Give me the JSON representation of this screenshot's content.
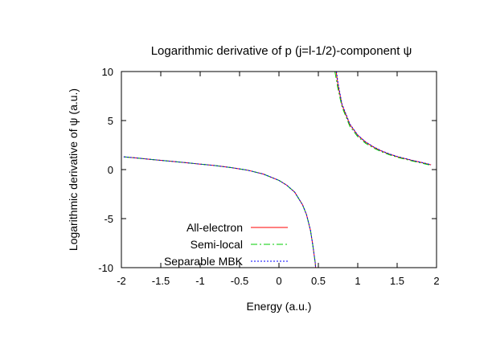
{
  "chart_data": {
    "type": "line",
    "title": "Logarithmic derivative of p (j=l-1/2)-component ψ",
    "xlabel": "Energy (a.u.)",
    "ylabel": "Logarithmic derivative of ψ (a.u.)",
    "xlim": [
      -2,
      2
    ],
    "ylim": [
      -10,
      10
    ],
    "xticks": [
      "-2",
      "-1.5",
      "-1",
      "-0.5",
      "0",
      "0.5",
      "1",
      "1.5",
      "2"
    ],
    "yticks": [
      "-10",
      "-5",
      "0",
      "5",
      "10"
    ],
    "legend_position": "bottom-left",
    "grid": false,
    "series": [
      {
        "name": "All-electron",
        "color": "#ff0000",
        "dash": "solid",
        "segments": [
          [
            [
              -1.97,
              1.3
            ],
            [
              -1.8,
              1.18
            ],
            [
              -1.6,
              1.02
            ],
            [
              -1.4,
              0.87
            ],
            [
              -1.2,
              0.72
            ],
            [
              -1.0,
              0.56
            ],
            [
              -0.8,
              0.4
            ],
            [
              -0.6,
              0.2
            ],
            [
              -0.4,
              -0.06
            ],
            [
              -0.2,
              -0.45
            ],
            [
              0.0,
              -1.1
            ],
            [
              0.1,
              -1.6
            ],
            [
              0.2,
              -2.3
            ],
            [
              0.3,
              -3.6
            ],
            [
              0.35,
              -4.6
            ],
            [
              0.4,
              -6.2
            ],
            [
              0.43,
              -7.7
            ],
            [
              0.46,
              -9.5
            ],
            [
              0.465,
              -10.0
            ]
          ],
          [
            [
              0.725,
              10.0
            ],
            [
              0.75,
              8.6
            ],
            [
              0.8,
              6.6
            ],
            [
              0.9,
              4.6
            ],
            [
              1.0,
              3.5
            ],
            [
              1.1,
              2.8
            ],
            [
              1.2,
              2.3
            ],
            [
              1.3,
              1.9
            ],
            [
              1.4,
              1.58
            ],
            [
              1.5,
              1.32
            ],
            [
              1.6,
              1.12
            ],
            [
              1.7,
              0.92
            ],
            [
              1.8,
              0.74
            ],
            [
              1.9,
              0.55
            ],
            [
              1.93,
              0.48
            ]
          ]
        ]
      },
      {
        "name": "Semi-local",
        "color": "#00cc00",
        "dash": "8,3,2,3",
        "segments": [
          [
            [
              -1.97,
              1.3
            ],
            [
              -1.8,
              1.18
            ],
            [
              -1.6,
              1.02
            ],
            [
              -1.4,
              0.87
            ],
            [
              -1.2,
              0.72
            ],
            [
              -1.0,
              0.56
            ],
            [
              -0.8,
              0.4
            ],
            [
              -0.6,
              0.2
            ],
            [
              -0.4,
              -0.06
            ],
            [
              -0.2,
              -0.45
            ],
            [
              0.0,
              -1.1
            ],
            [
              0.1,
              -1.6
            ],
            [
              0.2,
              -2.3
            ],
            [
              0.3,
              -3.6
            ],
            [
              0.35,
              -4.6
            ],
            [
              0.4,
              -6.2
            ],
            [
              0.43,
              -7.7
            ],
            [
              0.46,
              -9.5
            ],
            [
              0.465,
              -10.0
            ]
          ],
          [
            [
              0.71,
              10.0
            ],
            [
              0.75,
              8.2
            ],
            [
              0.8,
              6.4
            ],
            [
              0.9,
              4.4
            ],
            [
              1.0,
              3.35
            ],
            [
              1.1,
              2.68
            ],
            [
              1.2,
              2.2
            ],
            [
              1.3,
              1.82
            ],
            [
              1.4,
              1.52
            ],
            [
              1.5,
              1.26
            ],
            [
              1.6,
              1.06
            ],
            [
              1.7,
              0.86
            ],
            [
              1.8,
              0.68
            ],
            [
              1.9,
              0.49
            ],
            [
              1.93,
              0.42
            ]
          ]
        ]
      },
      {
        "name": "Separable MBK",
        "color": "#0000ff",
        "dash": "2,2",
        "segments": [
          [
            [
              -1.97,
              1.3
            ],
            [
              -1.8,
              1.18
            ],
            [
              -1.6,
              1.02
            ],
            [
              -1.4,
              0.87
            ],
            [
              -1.2,
              0.72
            ],
            [
              -1.0,
              0.56
            ],
            [
              -0.8,
              0.4
            ],
            [
              -0.6,
              0.2
            ],
            [
              -0.4,
              -0.06
            ],
            [
              -0.2,
              -0.45
            ],
            [
              0.0,
              -1.1
            ],
            [
              0.1,
              -1.6
            ],
            [
              0.2,
              -2.3
            ],
            [
              0.3,
              -3.6
            ],
            [
              0.35,
              -4.6
            ],
            [
              0.4,
              -6.2
            ],
            [
              0.43,
              -7.7
            ],
            [
              0.46,
              -9.5
            ],
            [
              0.465,
              -10.0
            ]
          ],
          [
            [
              0.73,
              10.0
            ],
            [
              0.75,
              8.8
            ],
            [
              0.8,
              6.7
            ],
            [
              0.9,
              4.65
            ],
            [
              1.0,
              3.52
            ],
            [
              1.1,
              2.82
            ],
            [
              1.2,
              2.32
            ],
            [
              1.3,
              1.92
            ],
            [
              1.4,
              1.6
            ],
            [
              1.5,
              1.34
            ],
            [
              1.6,
              1.13
            ],
            [
              1.7,
              0.93
            ],
            [
              1.8,
              0.75
            ],
            [
              1.9,
              0.56
            ],
            [
              1.93,
              0.49
            ]
          ]
        ]
      }
    ]
  }
}
